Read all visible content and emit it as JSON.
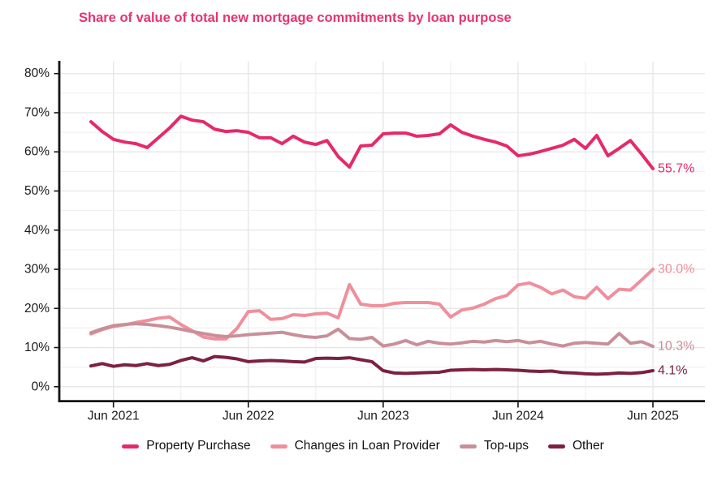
{
  "title": {
    "text": "Share of value of total new mortgage commitments by loan purpose",
    "color": "#e8336f"
  },
  "chart_data": {
    "type": "line",
    "title": "Share of value of total new mortgage commitments by loan purpose",
    "grid": true,
    "legend_position": "bottom",
    "ylim": [
      0,
      86
    ],
    "x_start": "Apr 2021",
    "x_end": "Jun 2025",
    "months": [
      "Apr 2021",
      "May 2021",
      "Jun 2021",
      "Jul 2021",
      "Aug 2021",
      "Sep 2021",
      "Oct 2021",
      "Nov 2021",
      "Dec 2021",
      "Jan 2022",
      "Feb 2022",
      "Mar 2022",
      "Apr 2022",
      "May 2022",
      "Jun 2022",
      "Jul 2022",
      "Aug 2022",
      "Sep 2022",
      "Oct 2022",
      "Nov 2022",
      "Dec 2022",
      "Jan 2023",
      "Feb 2023",
      "Mar 2023",
      "Apr 2023",
      "May 2023",
      "Jun 2023",
      "Jul 2023",
      "Aug 2023",
      "Sep 2023",
      "Oct 2023",
      "Nov 2023",
      "Dec 2023",
      "Jan 2024",
      "Feb 2024",
      "Mar 2024",
      "Apr 2024",
      "May 2024",
      "Jun 2024",
      "Jul 2024",
      "Aug 2024",
      "Sep 2024",
      "Oct 2024",
      "Nov 2024",
      "Dec 2024",
      "Jan 2025",
      "Feb 2025",
      "Mar 2025",
      "Apr 2025",
      "May 2025",
      "Jun 2025"
    ],
    "y_axis": {
      "ticks": [
        0,
        10,
        20,
        30,
        40,
        50,
        60,
        70,
        80
      ],
      "tick_suffix": "%",
      "minor_step": 5
    },
    "x_axis": {
      "ticks": [
        {
          "label": "Jun 2021",
          "month_index": 2
        },
        {
          "label": "Jun 2022",
          "month_index": 14
        },
        {
          "label": "Jun 2023",
          "month_index": 26
        },
        {
          "label": "Jun 2024",
          "month_index": 38
        },
        {
          "label": "Jun 2025",
          "month_index": 50
        }
      ],
      "gridline_month_indices": [
        2,
        8,
        14,
        20,
        26,
        32,
        38,
        44,
        50
      ]
    },
    "series": [
      {
        "name": "Property Purchase",
        "color": "#e52a68",
        "end_label": "55.7%",
        "values": [
          67.7,
          65.2,
          63.2,
          62.5,
          62.1,
          61.1,
          63.6,
          66.1,
          69.1,
          68.1,
          67.7,
          65.8,
          65.2,
          65.4,
          65.0,
          63.6,
          63.6,
          62.1,
          64.0,
          62.5,
          61.9,
          62.9,
          58.8,
          56.1,
          61.5,
          61.7,
          64.6,
          64.8,
          64.8,
          64.0,
          64.2,
          64.6,
          66.9,
          65.0,
          64.0,
          63.2,
          62.5,
          61.5,
          59.0,
          59.4,
          60.1,
          60.9,
          61.7,
          63.2,
          60.9,
          64.2,
          59.0,
          60.9,
          62.9,
          59.4,
          55.7
        ]
      },
      {
        "name": "Changes in Loan Provider",
        "color": "#f08f9c",
        "end_label": "30.0%",
        "values": [
          13.5,
          14.6,
          15.4,
          15.8,
          16.4,
          16.9,
          17.5,
          17.8,
          15.9,
          14.3,
          12.7,
          12.2,
          12.2,
          14.9,
          19.2,
          19.4,
          17.2,
          17.4,
          18.4,
          18.2,
          18.6,
          18.8,
          17.6,
          26.1,
          21.1,
          20.7,
          20.7,
          21.3,
          21.5,
          21.5,
          21.5,
          21.1,
          17.8,
          19.6,
          20.1,
          21.1,
          22.5,
          23.3,
          26.0,
          26.5,
          25.4,
          23.7,
          24.7,
          23.0,
          22.6,
          25.4,
          22.5,
          24.9,
          24.7,
          27.3,
          30.0
        ]
      },
      {
        "name": "Top-ups",
        "color": "#c98f99",
        "end_label": "10.3%",
        "values": [
          13.8,
          14.8,
          15.6,
          15.9,
          16.1,
          15.9,
          15.6,
          15.2,
          14.7,
          14.1,
          13.6,
          13.1,
          12.8,
          13.0,
          13.3,
          13.5,
          13.7,
          13.9,
          13.3,
          12.8,
          12.6,
          13.0,
          14.7,
          12.3,
          12.1,
          12.6,
          10.4,
          10.9,
          11.8,
          10.7,
          11.6,
          11.1,
          10.9,
          11.2,
          11.6,
          11.4,
          11.8,
          11.5,
          11.8,
          11.2,
          11.6,
          10.9,
          10.4,
          11.1,
          11.3,
          11.1,
          10.9,
          13.6,
          11.1,
          11.5,
          10.3
        ]
      },
      {
        "name": "Other",
        "color": "#7b2142",
        "end_label": "4.1%",
        "values": [
          5.3,
          5.9,
          5.2,
          5.6,
          5.4,
          5.9,
          5.4,
          5.7,
          6.7,
          7.4,
          6.6,
          7.7,
          7.5,
          7.1,
          6.4,
          6.6,
          6.7,
          6.6,
          6.4,
          6.3,
          7.2,
          7.3,
          7.2,
          7.4,
          6.9,
          6.4,
          4.1,
          3.5,
          3.4,
          3.5,
          3.6,
          3.7,
          4.2,
          4.3,
          4.4,
          4.3,
          4.4,
          4.3,
          4.2,
          4.0,
          3.9,
          4.0,
          3.6,
          3.5,
          3.3,
          3.2,
          3.3,
          3.5,
          3.4,
          3.6,
          4.1
        ]
      }
    ]
  }
}
